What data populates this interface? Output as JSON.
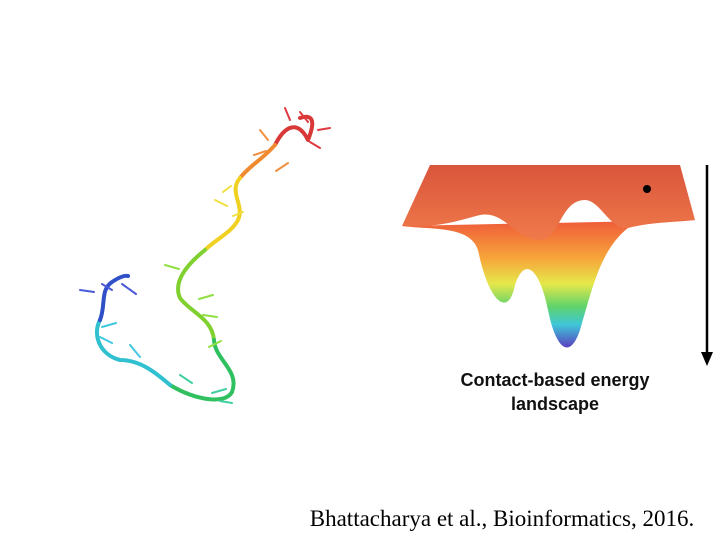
{
  "caption": {
    "lines": [
      "Contact-based energy",
      "landscape"
    ]
  },
  "citation": "Bhattacharya et al., Bioinformatics, 2016."
}
